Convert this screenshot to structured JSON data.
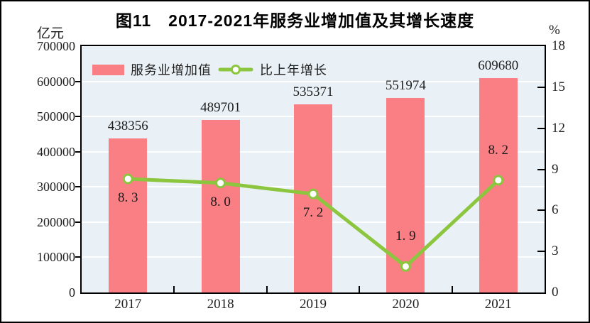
{
  "figure": {
    "title": "图11　2017-2021年服务业增加值及其增长速度",
    "left_axis_unit": "亿元",
    "right_axis_unit": "%"
  },
  "legend": {
    "bar_label": "服务业增加值",
    "line_label": "比上年增长"
  },
  "chart_data": {
    "type": "bar+line",
    "categories": [
      "2017",
      "2018",
      "2019",
      "2020",
      "2021"
    ],
    "series": [
      {
        "name": "服务业增加值",
        "type": "bar",
        "axis": "left",
        "unit": "亿元",
        "values": [
          438356,
          489701,
          535371,
          551974,
          609680
        ],
        "labels": [
          "438356",
          "489701",
          "535371",
          "551974",
          "609680"
        ],
        "color": "#f97f84"
      },
      {
        "name": "比上年增长",
        "type": "line",
        "axis": "right",
        "unit": "%",
        "values": [
          8.3,
          8.0,
          7.2,
          1.9,
          8.2
        ],
        "labels": [
          "8. 3",
          "8. 0",
          "7. 2",
          "1. 9",
          "8. 2"
        ],
        "label_side": [
          "below",
          "below",
          "below",
          "above",
          "above"
        ],
        "color": "#8cc63e",
        "marker": "circle-open"
      }
    ],
    "left_axis": {
      "unit": "亿元",
      "min": 0,
      "max": 700000,
      "step": 100000,
      "ticks": [
        0,
        100000,
        200000,
        300000,
        400000,
        500000,
        600000,
        700000
      ]
    },
    "right_axis": {
      "unit": "%",
      "min": 0,
      "max": 18,
      "step": 3,
      "ticks": [
        0,
        3,
        6,
        9,
        12,
        15,
        18
      ]
    },
    "grid": "horizontal-white",
    "plot_bg": "#e9f1f7",
    "legend_position": "top-left-inside"
  }
}
